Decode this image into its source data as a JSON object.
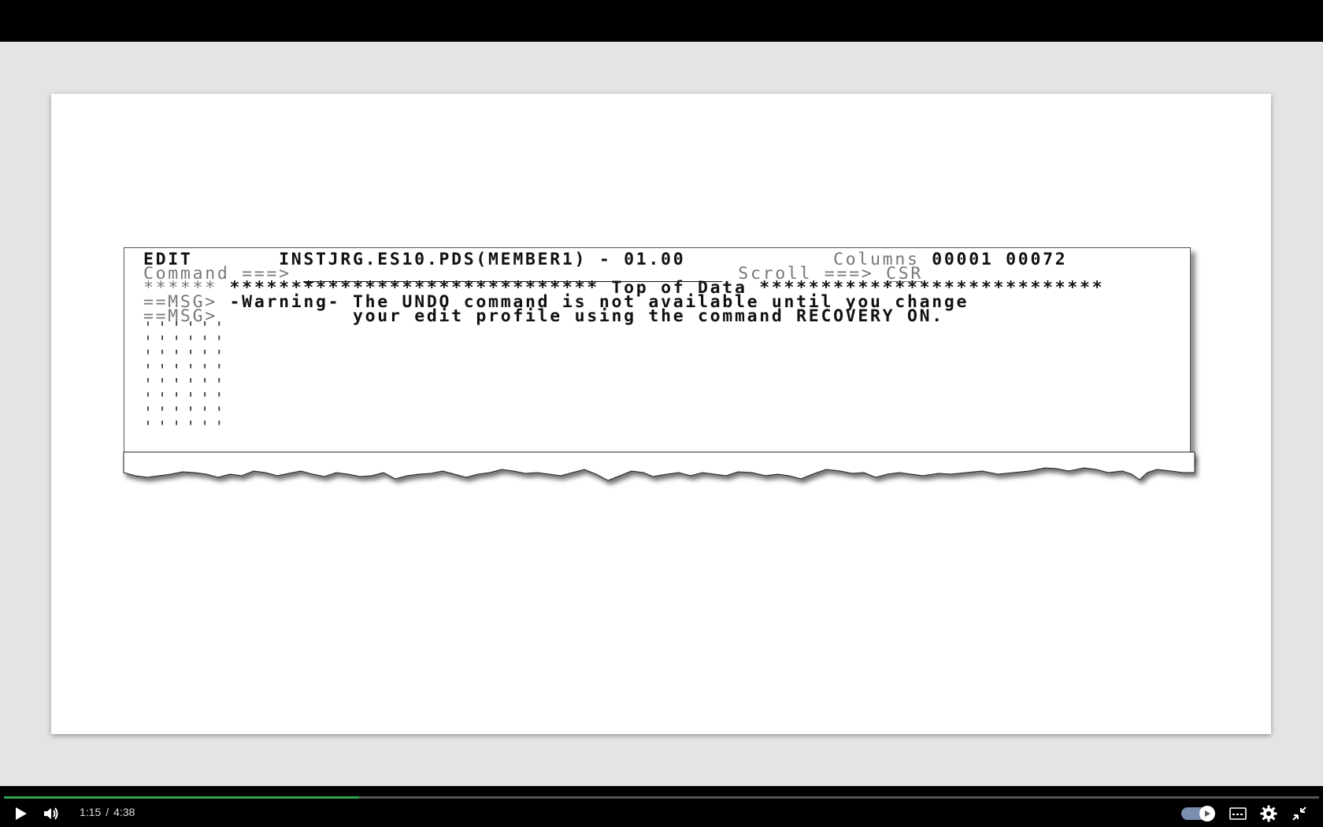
{
  "terminal": {
    "header_left": "EDIT",
    "dataset": "INSTJRG.ES10.PDS(MEMBER1) - 01.00",
    "columns_label": "Columns",
    "columns_start": "00001",
    "columns_end": "00072",
    "command_label": "Command ===>",
    "command_value": "",
    "scroll_label": "Scroll ===>",
    "scroll_value": "CSR",
    "top_prefix": "******",
    "top_of_data": "****************************** Top of Data ****************************",
    "msg_prefix_1": "==MSG>",
    "msg_text_1": "-Warning- The UNDO command is not available until you change",
    "msg_prefix_2": "==MSG>",
    "msg_text_2": "          your edit profile using the command RECOVERY ON.",
    "empty_line": "''''''"
  },
  "player": {
    "current_time": "1:15",
    "separator": "/",
    "duration": "4:38",
    "progress_fraction": 0.27,
    "accent_color": "#2ea44f",
    "icons": [
      "play-icon",
      "volume-icon",
      "autoplay-toggle",
      "captions-icon",
      "settings-icon",
      "exit-fullscreen-icon"
    ]
  }
}
